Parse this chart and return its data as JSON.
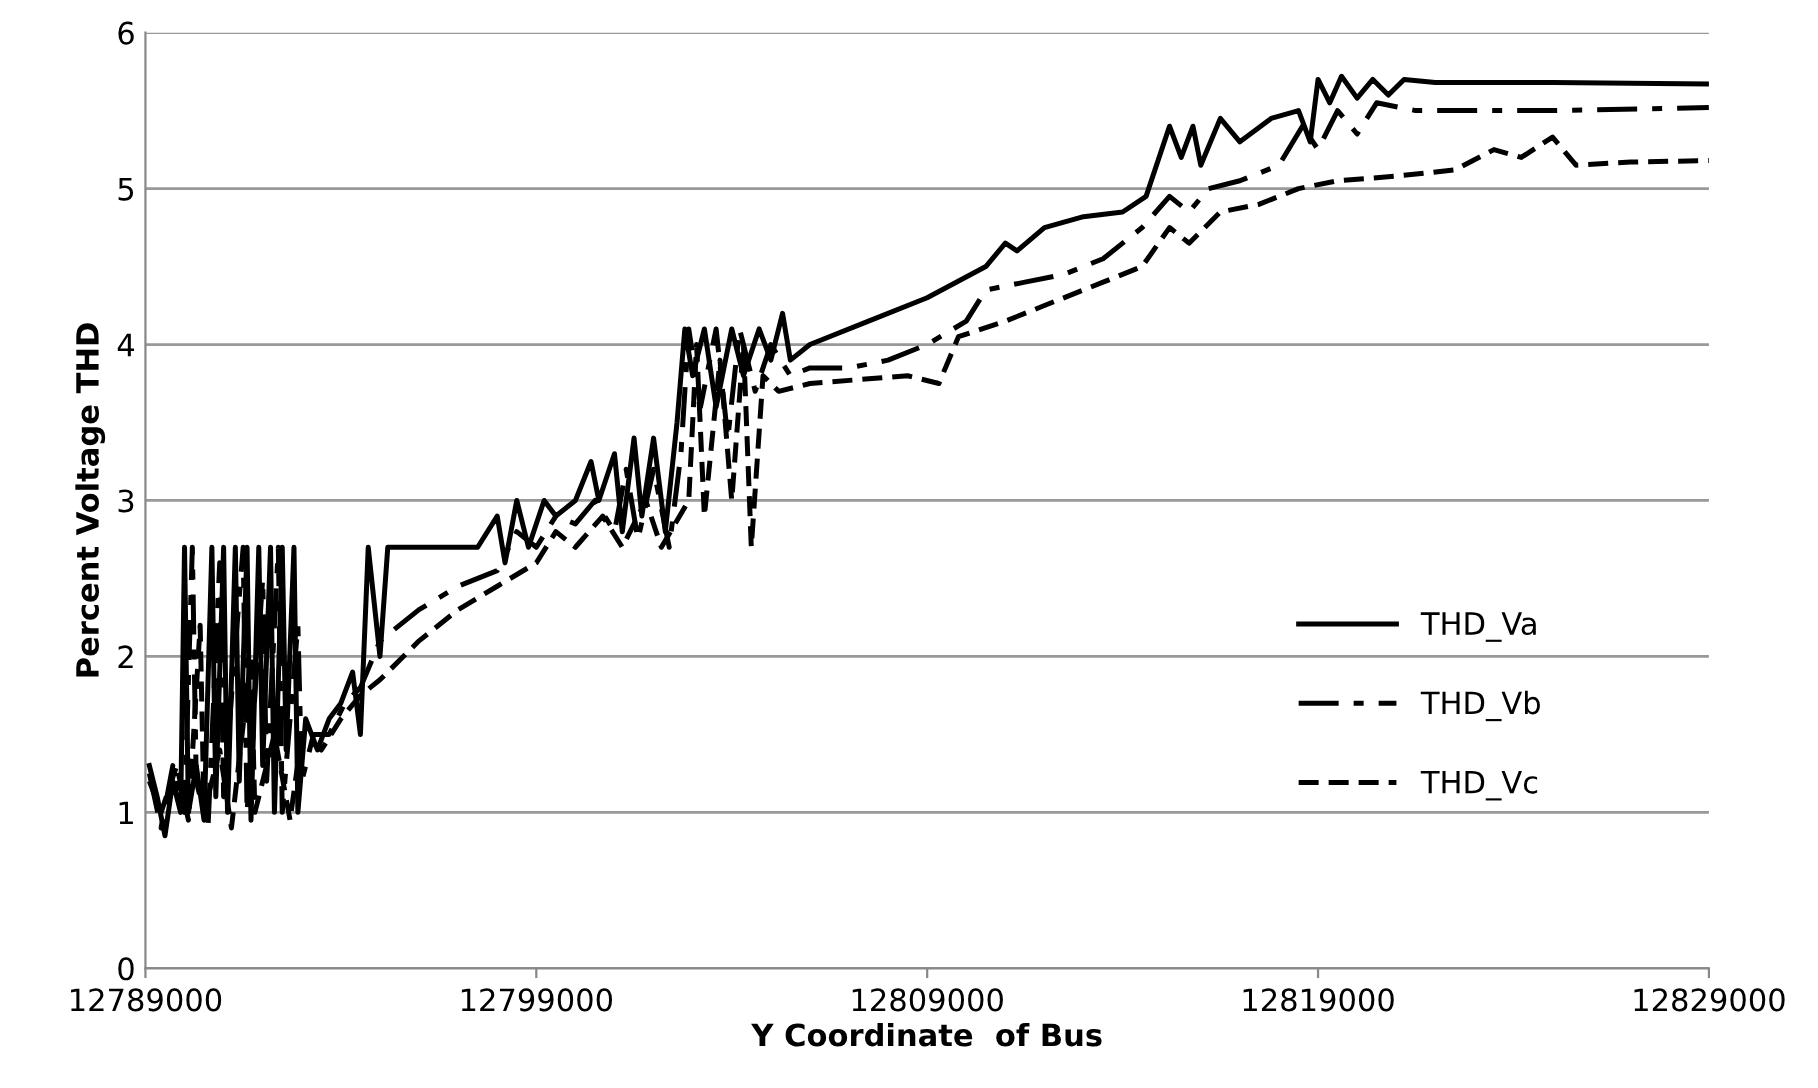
{
  "chart_data": {
    "type": "line",
    "xlabel": "Y Coordinate  of Bus",
    "ylabel": "Percent Voltage THD",
    "xlim": [
      12789000,
      12829000
    ],
    "xticks": [
      12789000,
      12799000,
      12809000,
      12819000,
      12829000
    ],
    "ylim": [
      0,
      6
    ],
    "yticks": [
      0,
      1,
      2,
      3,
      4,
      5,
      6
    ],
    "grid": "y",
    "legend": "right",
    "marker": "none",
    "series": [
      {
        "name": "THD_Va",
        "color": "#000000",
        "line_style": "solid",
        "x": [
          12789100,
          12789300,
          12789500,
          12789700,
          12789900,
          12790000,
          12790100,
          12790300,
          12790500,
          12790700,
          12790800,
          12791000,
          12791100,
          12791300,
          12791400,
          12791600,
          12791700,
          12791900,
          12792000,
          12792200,
          12792300,
          12792500,
          12792600,
          12792800,
          12792900,
          12793100,
          12793400,
          12793700,
          12794000,
          12794300,
          12794500,
          12794700,
          12795000,
          12795200,
          12796000,
          12797500,
          12798000,
          12798200,
          12798500,
          12798800,
          12799200,
          12799500,
          12800000,
          12800400,
          12800600,
          12801000,
          12801200,
          12801500,
          12801700,
          12802000,
          12802300,
          12802600,
          12802800,
          12803000,
          12803300,
          12803600,
          12804000,
          12804300,
          12804700,
          12805000,
          12805300,
          12805500,
          12806000,
          12807500,
          12809000,
          12810500,
          12811000,
          12811300,
          12812000,
          12813000,
          12814000,
          12814600,
          12815200,
          12815500,
          12815800,
          12816000,
          12816500,
          12817000,
          12817800,
          12818500,
          12818800,
          12819000,
          12819300,
          12819600,
          12820000,
          12820400,
          12820800,
          12821200,
          12822000,
          12825000,
          12829000
        ],
        "values": [
          1.3,
          1.1,
          0.85,
          1.2,
          1.0,
          2.7,
          1.0,
          1.3,
          0.95,
          2.7,
          1.1,
          2.7,
          1.0,
          2.7,
          1.2,
          2.7,
          0.95,
          2.7,
          1.3,
          2.7,
          1.0,
          2.7,
          1.4,
          2.7,
          1.0,
          1.6,
          1.4,
          1.6,
          1.7,
          1.9,
          1.5,
          2.7,
          2.0,
          2.7,
          2.7,
          2.7,
          2.9,
          2.6,
          3.0,
          2.7,
          3.0,
          2.9,
          3.0,
          3.25,
          3.0,
          3.3,
          2.8,
          3.4,
          2.9,
          3.4,
          2.8,
          3.5,
          4.1,
          3.8,
          4.1,
          3.6,
          4.1,
          3.8,
          4.1,
          3.9,
          4.2,
          3.9,
          4.0,
          4.15,
          4.3,
          4.5,
          4.65,
          4.6,
          4.75,
          4.82,
          4.85,
          4.95,
          5.4,
          5.2,
          5.4,
          5.15,
          5.45,
          5.3,
          5.45,
          5.5,
          5.3,
          5.7,
          5.55,
          5.72,
          5.58,
          5.7,
          5.6,
          5.7,
          5.68,
          5.68,
          5.67
        ]
      },
      {
        "name": "THD_Vb",
        "color": "#000000",
        "line_style": "dashdot",
        "x": [
          12789100,
          12789400,
          12789700,
          12790000,
          12790200,
          12790300,
          12790600,
          12790900,
          12791000,
          12791500,
          12791600,
          12792000,
          12792100,
          12792400,
          12792500,
          12792900,
          12793000,
          12793300,
          12793700,
          12794100,
          12794500,
          12795000,
          12796000,
          12797000,
          12798000,
          12798500,
          12799000,
          12799500,
          12800000,
          12800500,
          12801000,
          12801300,
          12801600,
          12802000,
          12802400,
          12802700,
          12802900,
          12803200,
          12803600,
          12803900,
          12804200,
          12804600,
          12805000,
          12805500,
          12806000,
          12807000,
          12808000,
          12809000,
          12810000,
          12810500,
          12811500,
          12812500,
          12813500,
          12814500,
          12815200,
          12815700,
          12816200,
          12817000,
          12818000,
          12818600,
          12819000,
          12819500,
          12820000,
          12820500,
          12821500,
          12825000,
          12829000
        ],
        "values": [
          1.25,
          0.9,
          1.3,
          1.0,
          2.7,
          1.2,
          0.9,
          2.6,
          1.1,
          2.7,
          1.0,
          2.5,
          1.2,
          2.7,
          1.0,
          2.2,
          1.2,
          1.5,
          1.5,
          1.7,
          1.8,
          2.1,
          2.3,
          2.45,
          2.55,
          2.8,
          2.7,
          2.9,
          2.85,
          3.0,
          2.8,
          3.2,
          2.75,
          3.2,
          2.7,
          3.3,
          4.1,
          3.6,
          4.1,
          3.4,
          4.1,
          3.7,
          4.0,
          3.8,
          3.85,
          3.85,
          3.9,
          4.0,
          4.15,
          4.35,
          4.4,
          4.45,
          4.55,
          4.75,
          4.95,
          4.85,
          5.0,
          5.05,
          5.15,
          5.4,
          5.25,
          5.5,
          5.35,
          5.55,
          5.5,
          5.5,
          5.52
        ]
      },
      {
        "name": "THD_Vc",
        "color": "#000000",
        "line_style": "dashed",
        "x": [
          12789100,
          12789400,
          12789800,
          12790100,
          12790400,
          12790500,
          12790900,
          12791200,
          12791700,
          12791800,
          12792300,
          12792700,
          12793000,
          12793500,
          12794000,
          12794500,
          12795000,
          12796000,
          12797000,
          12798000,
          12799000,
          12799500,
          12800000,
          12800700,
          12801200,
          12801800,
          12802200,
          12802900,
          12803100,
          12803300,
          12803700,
          12804000,
          12804300,
          12804500,
          12804800,
          12805200,
          12806000,
          12807500,
          12808500,
          12809300,
          12809800,
          12811000,
          12812000,
          12813500,
          12814500,
          12815200,
          12815700,
          12816500,
          12817500,
          12818500,
          12819500,
          12821000,
          12822500,
          12823500,
          12824200,
          12825000,
          12825600,
          12827000,
          12829000
        ],
        "values": [
          1.2,
          1.0,
          1.3,
          0.95,
          2.2,
          1.0,
          1.4,
          0.9,
          2.0,
          1.0,
          1.5,
          0.95,
          1.5,
          1.4,
          1.6,
          1.75,
          1.85,
          2.1,
          2.3,
          2.45,
          2.6,
          2.8,
          2.7,
          2.9,
          2.7,
          3.0,
          2.7,
          3.0,
          4.0,
          2.9,
          3.9,
          3.0,
          4.0,
          2.7,
          3.8,
          3.7,
          3.75,
          3.78,
          3.8,
          3.75,
          4.05,
          4.15,
          4.25,
          4.4,
          4.5,
          4.75,
          4.65,
          4.85,
          4.9,
          5.0,
          5.05,
          5.08,
          5.12,
          5.25,
          5.2,
          5.33,
          5.15,
          5.17,
          5.18
        ]
      }
    ]
  }
}
